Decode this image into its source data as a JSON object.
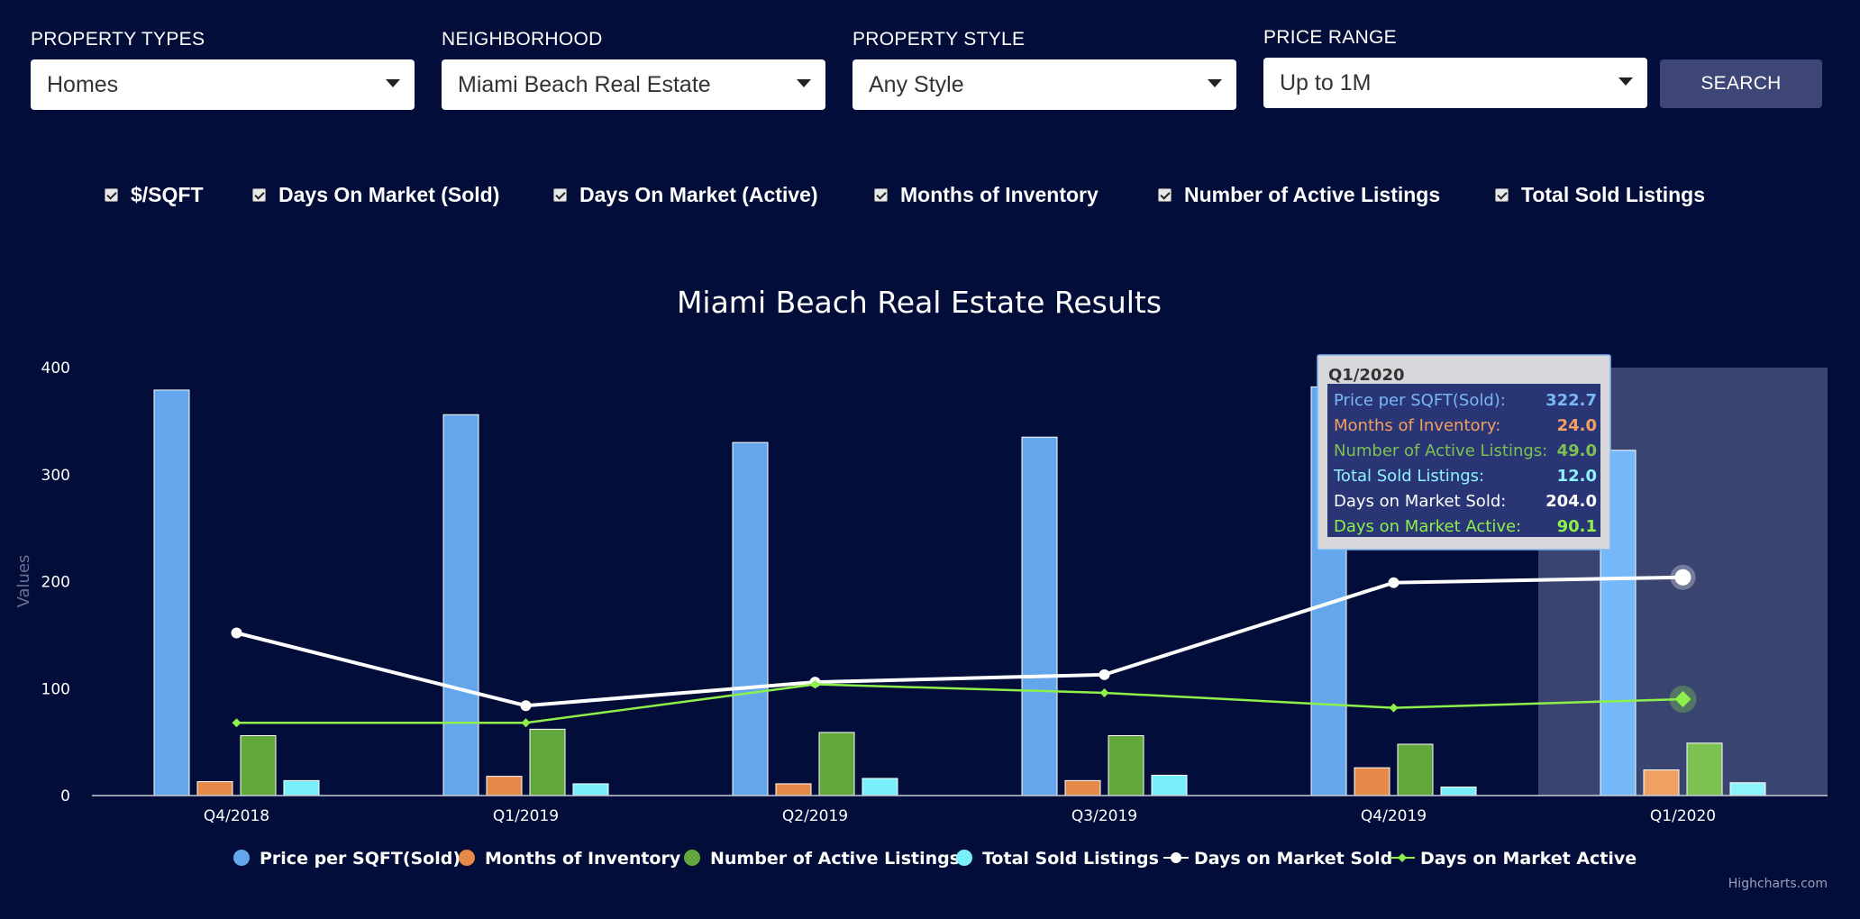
{
  "filters": [
    {
      "label": "PROPERTY TYPES",
      "value": "Homes"
    },
    {
      "label": "NEIGHBORHOOD",
      "value": "Miami Beach Real Estate"
    },
    {
      "label": "PROPERTY STYLE",
      "value": "Any Style"
    },
    {
      "label": "PRICE RANGE",
      "value": "Up to 1M"
    }
  ],
  "search_label": "SEARCH",
  "checkboxes": [
    {
      "label": "$/SQFT",
      "checked": true
    },
    {
      "label": "Days On Market (Sold)",
      "checked": true
    },
    {
      "label": "Days On Market (Active)",
      "checked": true
    },
    {
      "label": "Months of Inventory",
      "checked": true
    },
    {
      "label": "Number of Active Listings",
      "checked": true
    },
    {
      "label": "Total Sold Listings",
      "checked": true
    }
  ],
  "credit": "Highcharts.com",
  "chart_data": {
    "type": "bar",
    "title": "Miami Beach Real Estate Results",
    "ylabel": "Values",
    "xlabel": "",
    "ylim": [
      0,
      400
    ],
    "yticks": [
      0,
      100,
      200,
      300,
      400
    ],
    "grid": false,
    "legend_position": "bottom",
    "categories": [
      "Q4/2018",
      "Q1/2019",
      "Q2/2019",
      "Q3/2019",
      "Q4/2019",
      "Q1/2020"
    ],
    "hovered_category": "Q1/2020",
    "series": [
      {
        "name": "Price per SQFT(Sold)",
        "kind": "column",
        "color": "#63a6ec",
        "hover_color": "#74b8f7",
        "values": [
          379,
          356,
          330,
          335,
          382,
          322.7
        ]
      },
      {
        "name": "Months of Inventory",
        "kind": "column",
        "color": "#e58a48",
        "hover_color": "#f0a062",
        "values": [
          13,
          18,
          11,
          14,
          26,
          24.0
        ]
      },
      {
        "name": "Number of Active Listings",
        "kind": "column",
        "color": "#62a73b",
        "hover_color": "#7cc152",
        "values": [
          56,
          62,
          59,
          56,
          48,
          49.0
        ]
      },
      {
        "name": "Total Sold Listings",
        "kind": "column",
        "color": "#7aeffc",
        "hover_color": "#8ff3fd",
        "values": [
          14,
          11,
          16,
          19,
          8,
          12.0
        ]
      },
      {
        "name": "Days on Market Sold",
        "kind": "line",
        "marker": "circle",
        "color": "#ffffff",
        "values": [
          152,
          84,
          106,
          113,
          199,
          204.0
        ]
      },
      {
        "name": "Days on Market Active",
        "kind": "line",
        "marker": "diamond",
        "color": "#8ef04a",
        "values": [
          68,
          68,
          104,
          96,
          82,
          90.1
        ]
      }
    ],
    "tooltip": {
      "header": "Q1/2020",
      "rows": [
        {
          "label": "Price per SQFT(Sold):",
          "value": "322.7",
          "color": "#7ab8f5"
        },
        {
          "label": "Months of Inventory:",
          "value": "24.0",
          "color": "#f0a062"
        },
        {
          "label": "Number of Active Listings:",
          "value": "49.0",
          "color": "#7cc152"
        },
        {
          "label": "Total Sold Listings:",
          "value": "12.0",
          "color": "#8ff3fd"
        },
        {
          "label": "Days on Market Sold:",
          "value": "204.0",
          "color": "#ffffff"
        },
        {
          "label": "Days on Market Active:",
          "value": "90.1",
          "color": "#8ef04a"
        }
      ]
    }
  }
}
